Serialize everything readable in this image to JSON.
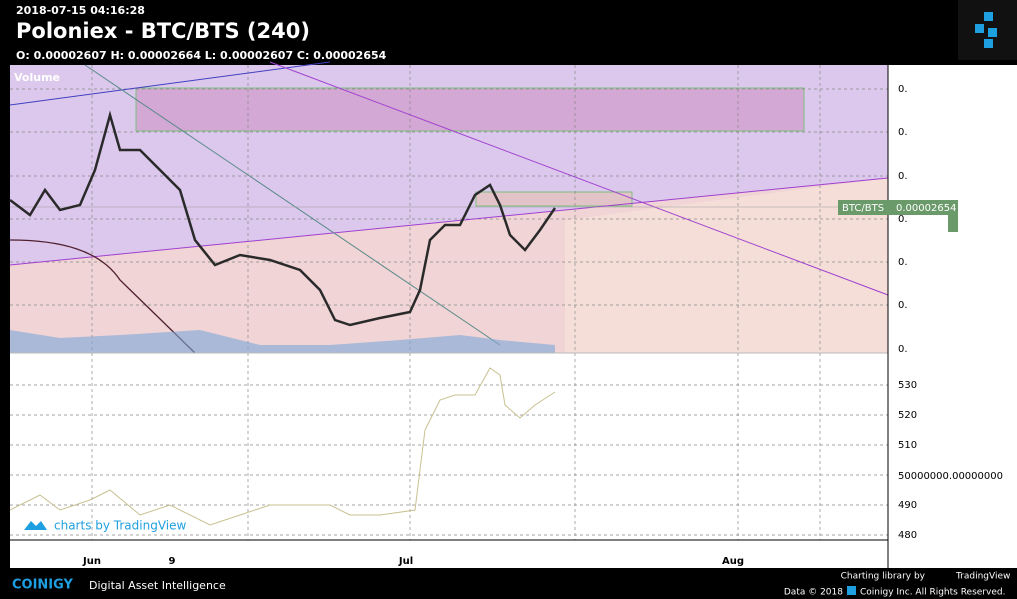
{
  "header": {
    "timestamp": "2018-07-15 04:16:28",
    "title": "Poloniex - BTC/BTS (240)",
    "ohlc": "O: 0.00002607 H: 0.00002664 L: 0.00002607 C: 0.00002654"
  },
  "chart": {
    "volume_label": "Volume",
    "price_axis": [
      "0.",
      "0.",
      "0.",
      "0.",
      "0.",
      "0.",
      "0."
    ],
    "indicator_axis": [
      "530",
      "520",
      "510",
      "50000000.00000000",
      "490",
      "480"
    ],
    "price_tag_symbol": "BTC/BTS",
    "price_tag_value": "0.00002654",
    "time_axis": [
      "Jun",
      "9",
      "Jul",
      "Aug"
    ],
    "watermark": "charts by TradingView"
  },
  "footer": {
    "brand": "COINIGY",
    "tagline": "Digital Asset Intelligence",
    "charting_by": "Charting library by",
    "tradingview": "TradingView",
    "data_year": "Data © 2018",
    "rights": "Coinigy Inc. All Rights Reserved."
  }
}
